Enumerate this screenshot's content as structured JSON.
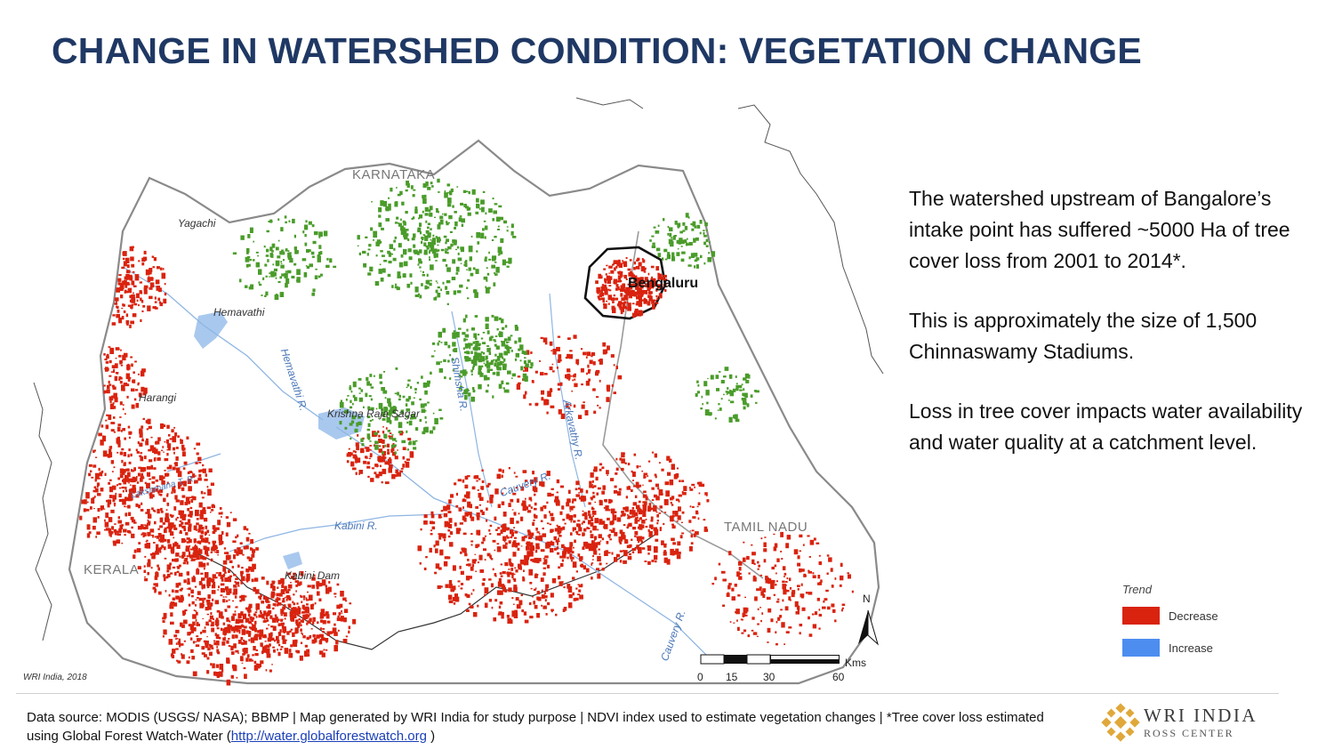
{
  "title": "CHANGE IN WATERSHED CONDITION: VEGETATION CHANGE",
  "colors": {
    "title": "#1f3864",
    "decrease": "#d9230f",
    "increase": "#4d8df0",
    "vegetation_gain": "#4a9c2a",
    "water": "#a9c8ee"
  },
  "map": {
    "state_labels": [
      "KARNATAKA",
      "TAMIL NADU",
      "KERALA"
    ],
    "city_label": "Bengaluru",
    "places": [
      "Yagachi",
      "Hemavathi",
      "Harangi",
      "Krishna Raja Sagar",
      "Kabini Dam"
    ],
    "rivers": [
      "Hemavathi R.",
      "Shimsha R.",
      "Arkavathy R.",
      "Cauvery R.",
      "Kabini R.",
      "Cauvery R.",
      "Lakshmana T. R."
    ],
    "credit": "WRI India, 2018",
    "north": "N",
    "scale": {
      "unit": "Kms",
      "ticks": [
        "0",
        "15",
        "30",
        "60"
      ]
    },
    "legend": {
      "title": "Trend",
      "items": [
        {
          "label": "Decrease",
          "color": "#d9230f"
        },
        {
          "label": "Increase",
          "color": "#4d8df0"
        }
      ]
    }
  },
  "body": {
    "p1": "The watershed upstream of Bangalore’s intake point has suffered ~5000 Ha of tree cover loss from 2001 to 2014*.",
    "p2": "This is approximately the size of 1,500 Chinnaswamy Stadiums.",
    "p3": "Loss in tree cover impacts water availability and water quality at a catchment level."
  },
  "footer": {
    "text": "Data source: MODIS (USGS/ NASA); BBMP | Map generated by WRI India for study purpose | NDVI index used to estimate vegetation changes | *Tree cover loss estimated using Global Forest Watch-Water (",
    "link": "http://water.globalforestwatch.org",
    "end": " )"
  },
  "logo": {
    "name": "WRI INDIA",
    "sub": "ROSS CENTER"
  }
}
